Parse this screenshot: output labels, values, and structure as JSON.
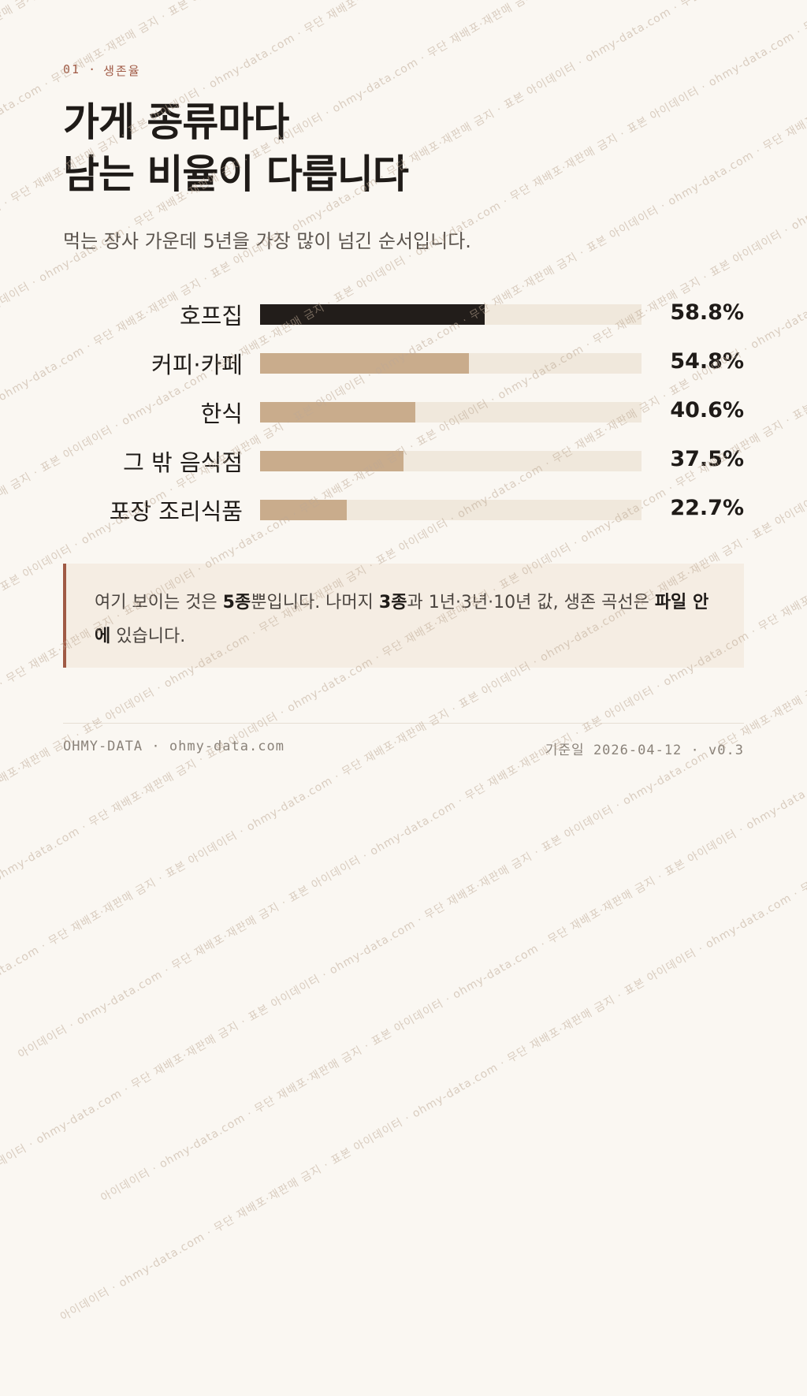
{
  "eyebrow": {
    "number": "01",
    "separator": "·",
    "section": "생존율"
  },
  "title": {
    "line1": "가게 종류마다",
    "line2": "남는 비율이 다릅니다"
  },
  "subtitle": "먹는 장사 가운데 5년을 가장 많이 넘긴 순서입니다.",
  "chart_data": {
    "type": "bar",
    "orientation": "horizontal",
    "categories": [
      "호프집",
      "커피·카페",
      "한식",
      "그 밖 음식점",
      "포장 조리식품"
    ],
    "values": [
      58.8,
      54.8,
      40.6,
      37.5,
      22.7
    ],
    "value_labels": [
      "58.8%",
      "54.8%",
      "40.6%",
      "37.5%",
      "22.7%"
    ],
    "unit": "%",
    "xlim": [
      0,
      100
    ],
    "highlight_index": 0,
    "colors": {
      "highlight": "#221d1a",
      "bar": "#c9ac8c",
      "track": "#f0e8dc"
    },
    "grid": false
  },
  "note": {
    "p1": "여기 보이는 것은 ",
    "b1": "5종",
    "p2": "뿐입니다. 나머지 ",
    "b2": "3종",
    "p3": "과 1년·3년·10년 값, 생존 곡선은 ",
    "b3": "파일 안에",
    "p4": " 있습니다."
  },
  "footer": {
    "brand": "OHMY-DATA",
    "separator": "·",
    "site": "ohmy-data.com",
    "date_label": "기준일",
    "date": "2026-04-12",
    "version": "v0.3"
  },
  "watermark": "아이데이터 · ohmy-data.com · 무단 재배포·재판매 금지 · 표본"
}
